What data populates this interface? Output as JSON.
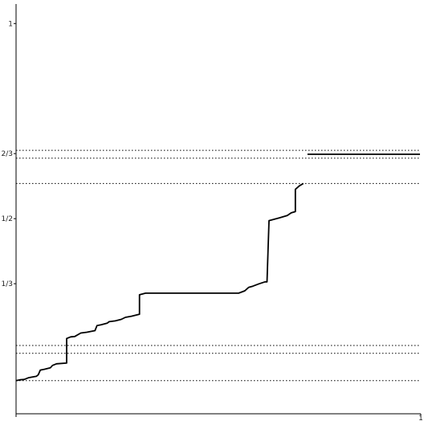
{
  "colors": {
    "background": "#ffffff",
    "axis": "#000000",
    "curve": "#000000",
    "reference": "#000000"
  },
  "chart_data": {
    "type": "line",
    "title": "",
    "xlabel": "",
    "ylabel": "",
    "xlim": [
      0,
      1
    ],
    "ylim": [
      0,
      1.05
    ],
    "grid": false,
    "legend": "none",
    "y_ticks": [
      {
        "value": 0.3333,
        "label": "1/3"
      },
      {
        "value": 0.5,
        "label": "1/2"
      },
      {
        "value": 0.6667,
        "label": "2/3"
      },
      {
        "value": 1,
        "label": "1"
      }
    ],
    "x_ticks": [
      {
        "value": 0,
        "label": ""
      },
      {
        "value": 1,
        "label": "1"
      }
    ],
    "reference_lines": [
      0.085,
      0.155,
      0.175,
      0.59,
      0.655,
      0.675
    ],
    "series": [
      {
        "points": [
          [
            0.0,
            0.085
          ],
          [
            0.01,
            0.087
          ],
          [
            0.02,
            0.088
          ],
          [
            0.03,
            0.092
          ],
          [
            0.04,
            0.094
          ],
          [
            0.05,
            0.096
          ],
          [
            0.055,
            0.1
          ],
          [
            0.06,
            0.112
          ],
          [
            0.07,
            0.114
          ],
          [
            0.085,
            0.118
          ],
          [
            0.09,
            0.124
          ],
          [
            0.1,
            0.128
          ],
          [
            0.125,
            0.13
          ],
          [
            0.125,
            0.193
          ],
          [
            0.135,
            0.197
          ],
          [
            0.145,
            0.198
          ],
          [
            0.16,
            0.207
          ],
          [
            0.175,
            0.209
          ],
          [
            0.195,
            0.213
          ],
          [
            0.2,
            0.226
          ],
          [
            0.21,
            0.228
          ],
          [
            0.225,
            0.232
          ],
          [
            0.23,
            0.236
          ],
          [
            0.245,
            0.238
          ],
          [
            0.26,
            0.242
          ],
          [
            0.27,
            0.247
          ],
          [
            0.285,
            0.25
          ],
          [
            0.305,
            0.255
          ],
          [
            0.305,
            0.305
          ],
          [
            0.32,
            0.309
          ],
          [
            0.5,
            0.309
          ],
          [
            0.55,
            0.309
          ],
          [
            0.565,
            0.315
          ],
          [
            0.575,
            0.324
          ],
          [
            0.585,
            0.327
          ],
          [
            0.6,
            0.333
          ],
          [
            0.615,
            0.338
          ],
          [
            0.62,
            0.338
          ],
          [
            0.625,
            0.495
          ],
          [
            0.65,
            0.502
          ],
          [
            0.67,
            0.508
          ],
          [
            0.68,
            0.515
          ],
          [
            0.69,
            0.518
          ],
          [
            0.69,
            0.575
          ],
          [
            0.7,
            0.584
          ],
          [
            0.71,
            0.59
          ]
        ]
      },
      {
        "points": [
          [
            0.72,
            0.665
          ],
          [
            0.998,
            0.665
          ]
        ]
      }
    ]
  }
}
